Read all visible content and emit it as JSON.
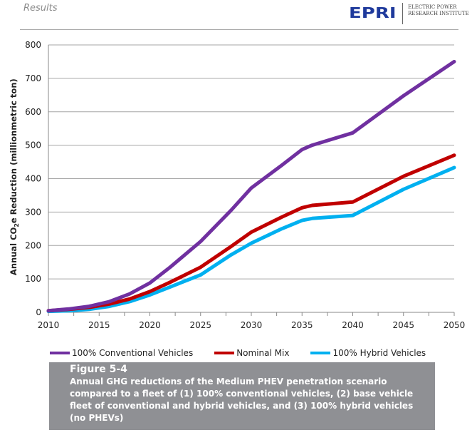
{
  "header": {
    "section": "Results",
    "logo_mark": "EPRI",
    "logo_text_line1": "ELECTRIC POWER",
    "logo_text_line2": "RESEARCH INSTITUTE"
  },
  "chart_data": {
    "type": "line",
    "ylabel_prefix": "Annual CO",
    "ylabel_sub": "2",
    "ylabel_suffix": "e Reduction (millionmetric  ton)",
    "xlim": [
      2010,
      2050
    ],
    "ylim": [
      0,
      800
    ],
    "xticks": [
      2010,
      2015,
      2020,
      2025,
      2030,
      2035,
      2040,
      2045,
      2050
    ],
    "yticks": [
      0,
      100,
      200,
      300,
      400,
      500,
      600,
      700,
      800
    ],
    "grid": "horizontal",
    "legend": "bottom",
    "series": [
      {
        "name": "100% Conventional Vehicles",
        "color": "#7030a0",
        "x": [
          2010,
          2012,
          2014,
          2016,
          2018,
          2020,
          2022,
          2025,
          2028,
          2030,
          2033,
          2035,
          2036,
          2040,
          2045,
          2050
        ],
        "y": [
          5,
          10,
          18,
          32,
          55,
          88,
          135,
          212,
          305,
          372,
          440,
          487,
          500,
          537,
          648,
          750
        ]
      },
      {
        "name": "Nominal Mix",
        "color": "#c00000",
        "x": [
          2010,
          2012,
          2014,
          2016,
          2018,
          2020,
          2022,
          2025,
          2028,
          2030,
          2033,
          2035,
          2036,
          2040,
          2045,
          2050
        ],
        "y": [
          5,
          9,
          15,
          25,
          40,
          62,
          90,
          135,
          197,
          240,
          285,
          313,
          320,
          330,
          407,
          470
        ]
      },
      {
        "name": "100% Hybrid Vehicles",
        "color": "#00b0f0",
        "x": [
          2010,
          2012,
          2014,
          2016,
          2018,
          2020,
          2022,
          2025,
          2028,
          2030,
          2033,
          2035,
          2036,
          2040,
          2045,
          2050
        ],
        "y": [
          3,
          5,
          9,
          18,
          32,
          52,
          76,
          112,
          172,
          207,
          250,
          275,
          281,
          290,
          368,
          433
        ]
      }
    ]
  },
  "caption": {
    "title": "Figure 5-4",
    "text": "Annual GHG reductions of the Medium PHEV penetration scenario compared to a fleet of (1) 100% conventional vehicles, (2) base vehicle fleet of conventional and hybrid vehicles, and (3) 100% hybrid vehicles (no PHEVs)"
  }
}
